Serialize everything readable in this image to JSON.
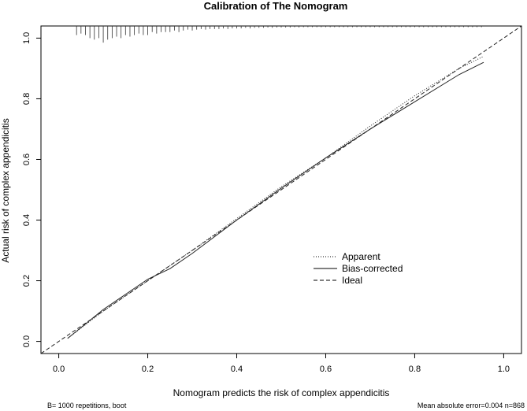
{
  "chart_data": {
    "type": "line",
    "title": "Calibration of The Nomogram",
    "xlabel": "Nomogram predicts the risk of complex appendicitis",
    "ylabel": "Actual risk of complex appendicitis",
    "xlim": [
      -0.04,
      1.04
    ],
    "ylim": [
      -0.04,
      1.04
    ],
    "x_ticks": [
      0.0,
      0.2,
      0.4,
      0.6,
      0.8,
      1.0
    ],
    "y_ticks": [
      0.0,
      0.2,
      0.4,
      0.6,
      0.8,
      1.0
    ],
    "x_tick_labels": [
      "0.0",
      "0.2",
      "0.4",
      "0.6",
      "0.8",
      "1.0"
    ],
    "y_tick_labels": [
      "0.0",
      "0.2",
      "0.4",
      "0.6",
      "0.8",
      "1.0"
    ],
    "grid": false,
    "legend_position": "right, middle-lower",
    "series": [
      {
        "name": "Apparent",
        "style": "dotted",
        "x": [
          0.02,
          0.1,
          0.2,
          0.25,
          0.3,
          0.4,
          0.5,
          0.6,
          0.7,
          0.8,
          0.9,
          0.955
        ],
        "y": [
          0.01,
          0.1,
          0.2,
          0.25,
          0.3,
          0.405,
          0.51,
          0.605,
          0.71,
          0.81,
          0.9,
          0.94
        ]
      },
      {
        "name": "Bias-corrected",
        "style": "solid",
        "x": [
          0.02,
          0.1,
          0.2,
          0.25,
          0.3,
          0.4,
          0.5,
          0.6,
          0.7,
          0.8,
          0.9,
          0.955
        ],
        "y": [
          0.01,
          0.105,
          0.205,
          0.24,
          0.29,
          0.4,
          0.505,
          0.605,
          0.7,
          0.79,
          0.88,
          0.92
        ]
      },
      {
        "name": "Ideal",
        "style": "dashed",
        "x": [
          -0.04,
          1.04
        ],
        "y": [
          -0.04,
          1.04
        ]
      }
    ],
    "rug": {
      "baseline": 1.04,
      "x": [
        0.04,
        0.05,
        0.06,
        0.07,
        0.08,
        0.09,
        0.1,
        0.11,
        0.12,
        0.13,
        0.14,
        0.15,
        0.16,
        0.17,
        0.18,
        0.19,
        0.2,
        0.21,
        0.22,
        0.23,
        0.24,
        0.25,
        0.26,
        0.27,
        0.28,
        0.29,
        0.3,
        0.31,
        0.32,
        0.33,
        0.34,
        0.35,
        0.36,
        0.37,
        0.38,
        0.39,
        0.4,
        0.41,
        0.42,
        0.43,
        0.44,
        0.45,
        0.46,
        0.47,
        0.48,
        0.49,
        0.5,
        0.51,
        0.52,
        0.53,
        0.54,
        0.55,
        0.56,
        0.57,
        0.58,
        0.59,
        0.6,
        0.61,
        0.62,
        0.63,
        0.64,
        0.65,
        0.66,
        0.67,
        0.68,
        0.69,
        0.7,
        0.71,
        0.72,
        0.73,
        0.74,
        0.75,
        0.76,
        0.77,
        0.78,
        0.79,
        0.8,
        0.81,
        0.82,
        0.83,
        0.84,
        0.85,
        0.86,
        0.87,
        0.88,
        0.89,
        0.9,
        0.91,
        0.92,
        0.93,
        0.94,
        0.95
      ],
      "h": [
        0.03,
        0.025,
        0.03,
        0.04,
        0.045,
        0.04,
        0.055,
        0.045,
        0.04,
        0.035,
        0.04,
        0.03,
        0.035,
        0.03,
        0.025,
        0.03,
        0.03,
        0.02,
        0.025,
        0.02,
        0.02,
        0.02,
        0.015,
        0.02,
        0.015,
        0.012,
        0.015,
        0.012,
        0.01,
        0.012,
        0.01,
        0.01,
        0.01,
        0.008,
        0.01,
        0.008,
        0.008,
        0.008,
        0.006,
        0.008,
        0.006,
        0.006,
        0.006,
        0.005,
        0.006,
        0.005,
        0.005,
        0.005,
        0.005,
        0.004,
        0.005,
        0.004,
        0.004,
        0.004,
        0.004,
        0.004,
        0.004,
        0.004,
        0.004,
        0.004,
        0.004,
        0.004,
        0.004,
        0.004,
        0.004,
        0.004,
        0.004,
        0.004,
        0.004,
        0.004,
        0.004,
        0.004,
        0.004,
        0.004,
        0.004,
        0.004,
        0.004,
        0.004,
        0.004,
        0.004,
        0.004,
        0.004,
        0.004,
        0.004,
        0.004,
        0.004,
        0.004,
        0.004,
        0.004,
        0.004,
        0.004,
        0.004
      ]
    },
    "legend": {
      "items": [
        {
          "label": "Apparent",
          "style": "dotted"
        },
        {
          "label": "Bias-corrected",
          "style": "solid"
        },
        {
          "label": "Ideal",
          "style": "dashed"
        }
      ]
    },
    "footnote_left": "B= 1000 repetitions, boot",
    "footnote_right": "Mean absolute error=0.004 n=868"
  }
}
